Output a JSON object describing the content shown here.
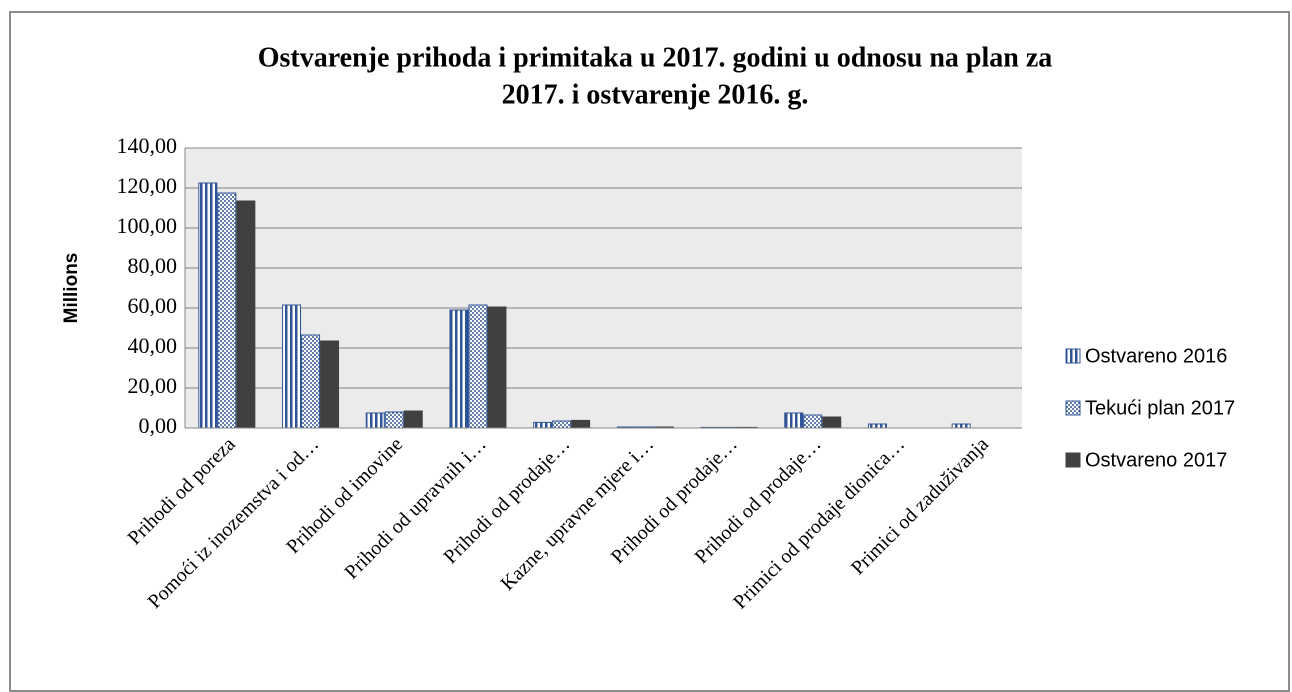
{
  "chart_data": {
    "type": "bar",
    "title": [
      "Ostvarenje prihoda i primitaka u 2017. godini u odnosu na plan za",
      "2017. i ostvarenje 2016. g."
    ],
    "y_axis_label": "Millions",
    "categories": [
      "Prihodi od poreza",
      "Pomoći iz inozemstva i od…",
      "Prihodi od imovine",
      "Prihodi od upravnih i…",
      "Prihodi od prodaje…",
      "Kazne, upravne mjere i…",
      "Prihodi od prodaje…",
      "Prihodi od prodaje…",
      "Primici od prodaje dionica…",
      "Primici od zaduživanja"
    ],
    "series": [
      {
        "name": "Ostvareno 2016",
        "color": "#2f5597",
        "pattern": "vertical-stripes",
        "values": [
          122.5,
          61.5,
          7.5,
          59,
          2.8,
          0.5,
          0.3,
          7.5,
          2,
          2
        ]
      },
      {
        "name": "Tekući plan 2017",
        "color": "#2f5597",
        "pattern": "dots",
        "values": [
          117.5,
          46.5,
          8,
          61.5,
          3.5,
          0.5,
          0.3,
          6.5,
          0,
          0
        ]
      },
      {
        "name": "Ostvareno 2017",
        "color": "#404040",
        "pattern": "solid",
        "values": [
          113.5,
          43.5,
          8.5,
          60.5,
          3.8,
          0.5,
          0.3,
          5.5,
          0,
          0
        ]
      }
    ],
    "ylim": [
      0,
      140
    ],
    "yticks": [
      {
        "value": 0,
        "label": "0,00"
      },
      {
        "value": 20,
        "label": "20,00"
      },
      {
        "value": 40,
        "label": "40,00"
      },
      {
        "value": 60,
        "label": "60,00"
      },
      {
        "value": 80,
        "label": "80,00"
      },
      {
        "value": 100,
        "label": "100,00"
      },
      {
        "value": 120,
        "label": "120,00"
      },
      {
        "value": 140,
        "label": "140,00"
      }
    ],
    "grid": true,
    "legend": "right"
  }
}
